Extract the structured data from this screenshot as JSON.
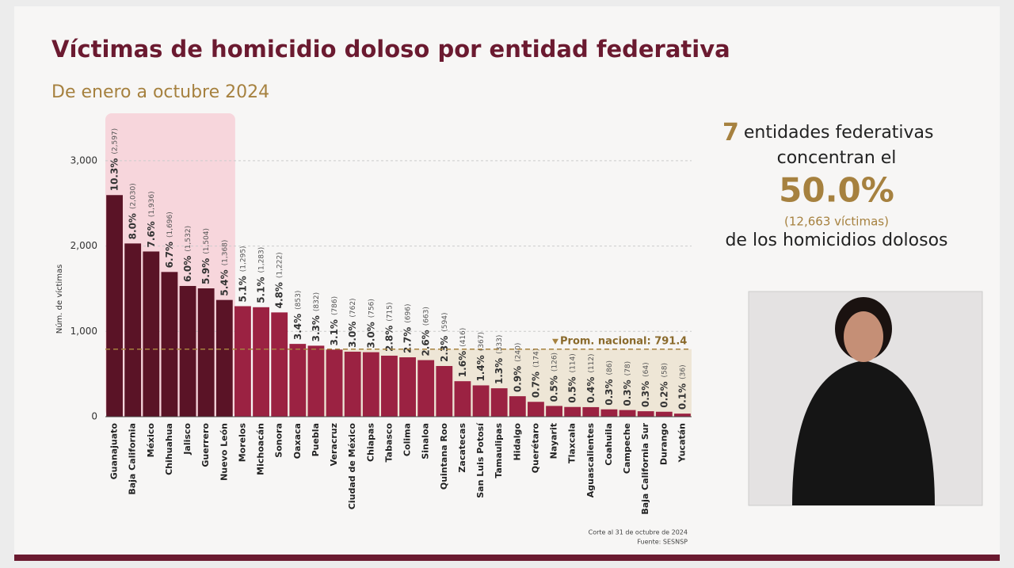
{
  "header": {
    "title": "Víctimas de homicidio doloso por entidad federativa",
    "subtitle": "De enero a octubre 2024"
  },
  "chart_data": {
    "type": "bar",
    "y_label": "Núm. de víctimas",
    "categories": [
      "Guanajuato",
      "Baja California",
      "México",
      "Chihuahua",
      "Jalisco",
      "Guerrero",
      "Nuevo León",
      "Morelos",
      "Michoacán",
      "Sonora",
      "Oaxaca",
      "Puebla",
      "Veracruz",
      "Ciudad de México",
      "Chiapas",
      "Tabasco",
      "Colima",
      "Sinaloa",
      "Quintana Roo",
      "Zacatecas",
      "San Luis Potosí",
      "Tamaulipas",
      "Hidalgo",
      "Querétaro",
      "Nayarit",
      "Tlaxcala",
      "Aguascalientes",
      "Coahuila",
      "Campeche",
      "Baja California Sur",
      "Durango",
      "Yucatán"
    ],
    "values": [
      2597,
      2030,
      1936,
      1696,
      1532,
      1504,
      1368,
      1295,
      1283,
      1222,
      853,
      832,
      786,
      762,
      756,
      715,
      696,
      663,
      594,
      416,
      367,
      333,
      240,
      174,
      126,
      114,
      112,
      86,
      78,
      64,
      58,
      36
    ],
    "value_labels": [
      "(2,597)",
      "(2,030)",
      "(1,936)",
      "(1,696)",
      "(1,532)",
      "(1,504)",
      "(1,368)",
      "(1,295)",
      "(1,283)",
      "(1,222)",
      "(853)",
      "(832)",
      "(786)",
      "(762)",
      "(756)",
      "(715)",
      "(696)",
      "(663)",
      "(594)",
      "(416)",
      "(367)",
      "(333)",
      "(240)",
      "(174)",
      "(126)",
      "(114)",
      "(112)",
      "(86)",
      "(78)",
      "(64)",
      "(58)",
      "(36)"
    ],
    "share_labels": [
      "10.3%",
      "8.0%",
      "7.6%",
      "6.7%",
      "6.0%",
      "5.9%",
      "5.4%",
      "5.1%",
      "5.1%",
      "4.8%",
      "3.4%",
      "3.3%",
      "3.1%",
      "3.0%",
      "3.0%",
      "2.8%",
      "2.7%",
      "2.6%",
      "2.3%",
      "1.6%",
      "1.4%",
      "1.3%",
      "0.9%",
      "0.7%",
      "0.5%",
      "0.5%",
      "0.4%",
      "0.3%",
      "0.3%",
      "0.3%",
      "0.2%",
      "0.1%"
    ],
    "colors": [
      "#5a1326",
      "#5a1326",
      "#5a1326",
      "#5a1326",
      "#5a1326",
      "#5a1326",
      "#5a1326",
      "#9b2242",
      "#9b2242",
      "#9b2242",
      "#9b2242",
      "#9b2242",
      "#9b2242",
      "#9b2242",
      "#9b2242",
      "#9b2242",
      "#9b2242",
      "#9b2242",
      "#9b2242",
      "#9b2242",
      "#9b2242",
      "#9b2242",
      "#9b2242",
      "#9b2242",
      "#9b2242",
      "#9b2242",
      "#9b2242",
      "#9b2242",
      "#9b2242",
      "#9b2242",
      "#9b2242",
      "#9b2242"
    ],
    "ylim": [
      0,
      3500
    ],
    "yticks": [
      0,
      {
        "value": 1000,
        "label": "1,000"
      },
      {
        "value": 2000,
        "label": "2,000"
      },
      {
        "value": 3000,
        "label": "3,000"
      }
    ],
    "grid": true,
    "average": {
      "value": 791.4,
      "label": "Prom. nacional: 791.4"
    }
  },
  "summary": {
    "count": "7",
    "line1": "entidades federativas",
    "line2": "concentran el",
    "share": "50.0%",
    "victims": "(12,663 víctimas)",
    "line3": "de los homicidios dolosos"
  },
  "footer": {
    "cutoff": "Corte al 31 de octubre de 2024",
    "source": "Fuente: SESNSP"
  }
}
